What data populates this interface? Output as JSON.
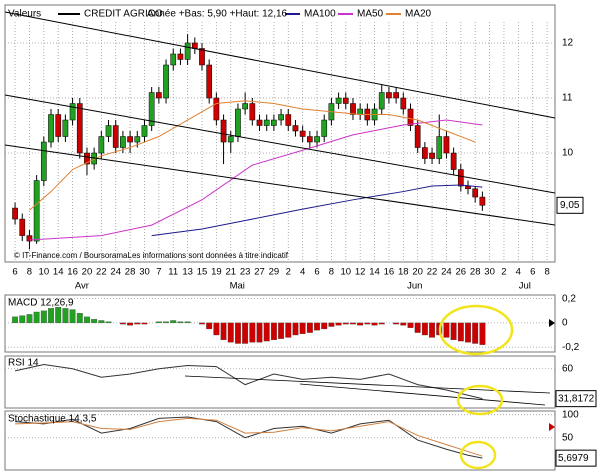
{
  "chart_data": [
    {
      "type": "candlestick",
      "title": "Valeurs",
      "name": "CREDIT AGRICO",
      "subtitle": "Année +Bas: 5,90 +Haut: 12,16",
      "footer": "© IT-Finance.com / BoursoramaLes informations sont données à titre indicatif",
      "up_color": "#22a022",
      "down_color": "#cc0000",
      "open": [
        9.0,
        8.8,
        8.5,
        8.4,
        9.5,
        10.2,
        10.7,
        10.3,
        10.6,
        10.9,
        10.0,
        9.8,
        10.0,
        10.3,
        10.5,
        10.1,
        10.3,
        10.2,
        10.3,
        10.5,
        11.1,
        11.0,
        11.6,
        11.8,
        11.7,
        12.0,
        11.9,
        11.6,
        11.0,
        10.6,
        10.2,
        10.3,
        10.8,
        10.9,
        10.6,
        10.5,
        10.5,
        10.6,
        10.7,
        10.5,
        10.4,
        10.3,
        10.2,
        10.3,
        10.6,
        10.9,
        11.0,
        10.9,
        10.7,
        10.8,
        10.6,
        10.8,
        11.1,
        11.1,
        11.0,
        10.8,
        10.5,
        10.1,
        10.0,
        9.9,
        10.3,
        10.0,
        9.7,
        9.4,
        9.35,
        9.2
      ],
      "high": [
        9.1,
        8.9,
        8.6,
        9.6,
        10.3,
        10.8,
        10.8,
        10.7,
        11.0,
        11.0,
        10.1,
        10.1,
        10.4,
        10.6,
        10.6,
        10.4,
        10.4,
        10.4,
        10.6,
        11.2,
        11.2,
        11.7,
        11.9,
        11.9,
        12.16,
        12.1,
        12.0,
        11.7,
        11.1,
        10.7,
        10.4,
        10.9,
        11.1,
        11.0,
        10.7,
        10.7,
        10.7,
        10.8,
        10.8,
        10.6,
        10.5,
        10.4,
        10.4,
        10.7,
        11.0,
        11.1,
        11.1,
        11.0,
        10.9,
        10.9,
        10.9,
        11.25,
        11.2,
        11.2,
        11.1,
        10.9,
        10.6,
        10.2,
        10.1,
        10.7,
        10.4,
        10.1,
        9.8,
        9.5,
        9.4,
        9.3
      ],
      "low": [
        8.7,
        8.4,
        8.25,
        8.35,
        9.4,
        10.1,
        10.2,
        10.2,
        10.5,
        9.9,
        9.6,
        9.7,
        9.9,
        10.2,
        10.0,
        10.0,
        10.0,
        10.1,
        10.2,
        10.4,
        10.9,
        10.9,
        11.5,
        11.6,
        11.6,
        11.8,
        11.5,
        10.9,
        10.5,
        9.8,
        10.0,
        10.2,
        10.7,
        10.5,
        10.4,
        10.4,
        10.4,
        10.5,
        10.4,
        10.3,
        10.2,
        10.1,
        10.1,
        10.2,
        10.5,
        10.8,
        10.8,
        10.6,
        10.6,
        10.5,
        10.5,
        10.7,
        10.9,
        10.9,
        10.7,
        10.4,
        10.0,
        9.8,
        9.8,
        9.8,
        9.9,
        9.6,
        9.3,
        9.25,
        9.1,
        8.95
      ],
      "close": [
        8.8,
        8.5,
        8.4,
        9.5,
        10.2,
        10.7,
        10.3,
        10.6,
        10.9,
        10.0,
        9.8,
        10.0,
        10.3,
        10.5,
        10.1,
        10.3,
        10.2,
        10.3,
        10.5,
        11.1,
        11.0,
        11.6,
        11.8,
        11.7,
        12.0,
        11.9,
        11.6,
        11.0,
        10.6,
        10.2,
        10.3,
        10.8,
        10.9,
        10.6,
        10.5,
        10.6,
        10.6,
        10.7,
        10.5,
        10.4,
        10.3,
        10.2,
        10.3,
        10.6,
        10.9,
        11.0,
        10.9,
        10.7,
        10.8,
        10.6,
        10.8,
        11.1,
        11.0,
        11.0,
        10.8,
        10.5,
        10.1,
        9.9,
        9.9,
        10.3,
        10.0,
        9.7,
        9.4,
        9.35,
        9.2,
        9.05
      ],
      "series": [
        {
          "name": "MA100",
          "color": "#1a1a8c",
          "x": [
            19,
            26,
            33,
            40,
            47,
            54,
            58,
            62,
            65
          ],
          "values": [
            8.5,
            8.62,
            8.8,
            8.98,
            9.15,
            9.3,
            9.4,
            9.42,
            9.38
          ]
        },
        {
          "name": "MA50",
          "color": "#cc33cc",
          "x": [
            2,
            12,
            19,
            26,
            33,
            40,
            47,
            54,
            60,
            65
          ],
          "values": [
            8.42,
            8.5,
            8.69,
            9.15,
            9.78,
            10.05,
            10.33,
            10.51,
            10.6,
            10.51
          ]
        },
        {
          "name": "MA20",
          "color": "#e08030",
          "x": [
            2,
            5,
            8,
            12,
            16,
            20,
            24,
            28,
            32,
            36,
            40,
            44,
            48,
            52,
            56,
            60,
            64
          ],
          "values": [
            8.96,
            9.3,
            9.7,
            9.95,
            10.1,
            10.3,
            10.6,
            10.9,
            10.95,
            10.9,
            10.8,
            10.75,
            10.7,
            10.7,
            10.6,
            10.4,
            10.2
          ]
        }
      ],
      "last_price": {
        "value": 9.05,
        "label": "9,05"
      },
      "xlim": [
        -1.4,
        75.1
      ],
      "ylim": [
        8.02,
        12.69
      ],
      "yticks": [
        10,
        11,
        12
      ],
      "xticks": [
        {
          "value": 0,
          "label": "6"
        },
        {
          "value": 2,
          "label": "8"
        },
        {
          "value": 4,
          "label": "10"
        },
        {
          "value": 6,
          "label": "14"
        },
        {
          "value": 8,
          "label": "16"
        },
        {
          "value": 10,
          "label": "20"
        },
        {
          "value": 12,
          "label": "22"
        },
        {
          "value": 14,
          "label": "24"
        },
        {
          "value": 16,
          "label": "28"
        },
        {
          "value": 18,
          "label": "30"
        },
        {
          "value": 20,
          "label": "7"
        },
        {
          "value": 22,
          "label": "11"
        },
        {
          "value": 24,
          "label": "13"
        },
        {
          "value": 26,
          "label": "15"
        },
        {
          "value": 28,
          "label": "19"
        },
        {
          "value": 30,
          "label": "21"
        },
        {
          "value": 32,
          "label": "23"
        },
        {
          "value": 34,
          "label": "27"
        },
        {
          "value": 36,
          "label": "29"
        },
        {
          "value": 38,
          "label": "2"
        },
        {
          "value": 40,
          "label": "4"
        },
        {
          "value": 42,
          "label": "6"
        },
        {
          "value": 44,
          "label": "8"
        },
        {
          "value": 46,
          "label": "10"
        },
        {
          "value": 48,
          "label": "12"
        },
        {
          "value": 50,
          "label": "14"
        },
        {
          "value": 52,
          "label": "16"
        },
        {
          "value": 54,
          "label": "18"
        },
        {
          "value": 56,
          "label": "20"
        },
        {
          "value": 58,
          "label": "22"
        },
        {
          "value": 60,
          "label": "24"
        },
        {
          "value": 62,
          "label": "26"
        },
        {
          "value": 64,
          "label": "28"
        },
        {
          "value": 66,
          "label": "30"
        },
        {
          "value": 68,
          "label": "2"
        },
        {
          "value": 70,
          "label": "4"
        },
        {
          "value": 72,
          "label": "6"
        },
        {
          "value": 74,
          "label": "8"
        }
      ],
      "xticks2": [
        {
          "value": 9.3,
          "label": "Avr"
        },
        {
          "value": 30.9,
          "label": "Mai"
        },
        {
          "value": 55.6,
          "label": "Jun"
        },
        {
          "value": 70.9,
          "label": "Jul"
        }
      ],
      "grid": true
    },
    {
      "type": "bar",
      "title": "MACD 12,26,9",
      "positive_color": "#22a022",
      "negative_color": "#cc0000",
      "values": [
        0.05,
        0.06,
        0.07,
        0.09,
        0.1,
        0.12,
        0.13,
        0.12,
        0.11,
        0.08,
        0.05,
        0.03,
        0.02,
        0.01,
        0.0,
        -0.01,
        -0.02,
        -0.01,
        -0.01,
        0.0,
        0.01,
        0.01,
        0.02,
        0.01,
        0.01,
        0.0,
        -0.01,
        -0.05,
        -0.1,
        -0.14,
        -0.16,
        -0.17,
        -0.17,
        -0.16,
        -0.16,
        -0.15,
        -0.14,
        -0.13,
        -0.12,
        -0.1,
        -0.09,
        -0.08,
        -0.06,
        -0.05,
        -0.03,
        -0.02,
        -0.01,
        -0.01,
        -0.02,
        -0.01,
        -0.02,
        -0.01,
        0.0,
        -0.01,
        -0.02,
        -0.04,
        -0.08,
        -0.1,
        -0.12,
        -0.1,
        -0.12,
        -0.14,
        -0.15,
        -0.16,
        -0.17,
        -0.18
      ],
      "ylim": [
        -0.24,
        0.23
      ],
      "yticks": [
        {
          "value": 0.2,
          "label": "0,2"
        },
        0,
        {
          "value": -0.2,
          "label": "-0,2"
        }
      ]
    },
    {
      "type": "line",
      "title": "RSI 14",
      "series": [
        {
          "color": "#333333",
          "x": [
            0,
            4,
            8,
            12,
            16,
            20,
            24,
            28,
            32,
            36,
            40,
            44,
            48,
            52,
            56,
            60,
            63,
            65
          ],
          "values": [
            58,
            64,
            60,
            52,
            55,
            60,
            63,
            62,
            45,
            55,
            50,
            52,
            50,
            55,
            45,
            40,
            35,
            31.8172
          ],
          "value_labels": [
            null,
            null,
            null,
            null,
            null,
            null,
            null,
            null,
            null,
            null,
            null,
            null,
            null,
            null,
            null,
            null,
            null,
            "31,8172"
          ]
        }
      ],
      "ylim": [
        23,
        72
      ],
      "yticks": [
        60
      ]
    },
    {
      "type": "line",
      "title": "Stochastique 14,3,5",
      "series": [
        {
          "color": "#333333",
          "x": [
            0,
            4,
            8,
            12,
            16,
            20,
            24,
            28,
            32,
            36,
            40,
            44,
            48,
            52,
            56,
            60,
            63,
            65
          ],
          "values": [
            85,
            80,
            90,
            60,
            70,
            92,
            95,
            85,
            50,
            70,
            75,
            60,
            80,
            88,
            45,
            25,
            12,
            5.6979
          ],
          "value_labels": [
            null,
            null,
            null,
            null,
            null,
            null,
            null,
            null,
            null,
            null,
            null,
            null,
            null,
            null,
            null,
            null,
            null,
            "5,6979"
          ]
        },
        {
          "color": "#d08040",
          "x": [
            0,
            4,
            8,
            12,
            16,
            20,
            24,
            28,
            32,
            36,
            40,
            44,
            48,
            52,
            56,
            60,
            63,
            65
          ],
          "values": [
            80,
            82,
            85,
            70,
            68,
            85,
            92,
            88,
            60,
            62,
            72,
            65,
            75,
            85,
            55,
            35,
            20,
            10
          ]
        }
      ],
      "ylim": [
        -20,
        108
      ],
      "yticks": [
        50,
        100
      ]
    }
  ]
}
